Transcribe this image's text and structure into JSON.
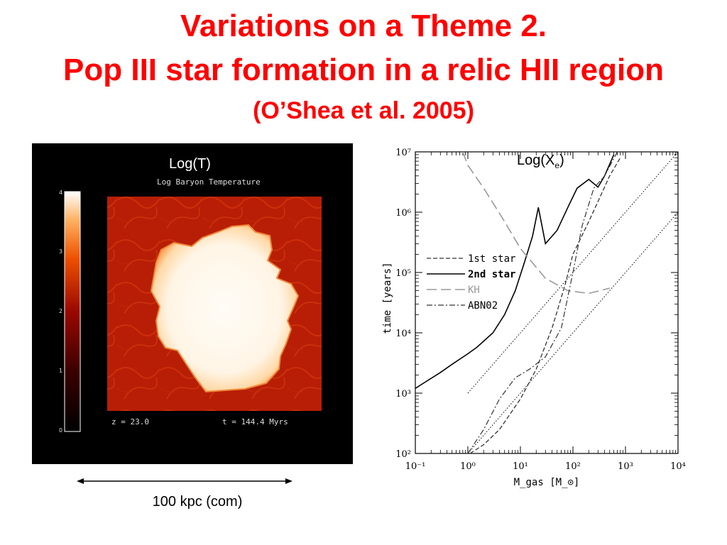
{
  "title": {
    "line1": "Variations on a Theme 2.",
    "line2": "Pop III star formation in a relic HII region",
    "line3": "(O’Shea et al. 2005)"
  },
  "simulation": {
    "label": "Log(T)",
    "subtitle": "Log Baryon Temperature",
    "redshift": "z = 23.0",
    "time": "t = 144.4 Myrs",
    "colorbar_ticks": [
      "4",
      "3",
      "2",
      "1",
      "0"
    ]
  },
  "scale_bar": {
    "label": "100 kpc (com)"
  },
  "chart_annotation": {
    "prefix": "Log(X",
    "subscript": "e",
    "suffix": ")"
  },
  "chart_data": {
    "type": "line",
    "xscale": "log",
    "yscale": "log",
    "xlim": [
      0.1,
      10000
    ],
    "ylim": [
      100,
      10000000
    ],
    "xlabel": "M_gas [M_⊙]",
    "ylabel": "time [years]",
    "x_ticks": [
      "10⁻¹",
      "10⁰",
      "10¹",
      "10²",
      "10³",
      "10⁴"
    ],
    "y_ticks": [
      "10²",
      "10³",
      "10⁴",
      "10⁵",
      "10⁶",
      "10⁷"
    ],
    "legend_position": "middle-left",
    "series": [
      {
        "name": "1st star",
        "style": "dashed",
        "color": "#333333",
        "points": [
          [
            1.1,
            100
          ],
          [
            2,
            140
          ],
          [
            4,
            250
          ],
          [
            10,
            800
          ],
          [
            20,
            2500
          ],
          [
            40,
            12000
          ],
          [
            70,
            60000
          ],
          [
            100,
            200000
          ],
          [
            200,
            700000
          ],
          [
            300,
            1500000
          ],
          [
            500,
            4000000
          ],
          [
            800,
            8000000
          ]
        ]
      },
      {
        "name": "2nd star",
        "style": "solid",
        "color": "#000000",
        "points": [
          [
            0.1,
            1200
          ],
          [
            0.15,
            1500
          ],
          [
            0.3,
            2200
          ],
          [
            0.5,
            3000
          ],
          [
            1,
            4500
          ],
          [
            1.5,
            5800
          ],
          [
            3,
            10000
          ],
          [
            5,
            20000
          ],
          [
            8,
            50000
          ],
          [
            12,
            150000
          ],
          [
            17,
            400000
          ],
          [
            22,
            1200000
          ],
          [
            30,
            300000
          ],
          [
            50,
            500000
          ],
          [
            80,
            1200000
          ],
          [
            120,
            2500000
          ],
          [
            200,
            3500000
          ],
          [
            300,
            2600000
          ],
          [
            400,
            4000000
          ],
          [
            600,
            9000000
          ]
        ]
      },
      {
        "name": "KH",
        "style": "long-dashed",
        "color": "#999999",
        "points": [
          [
            0.8,
            10000000
          ],
          [
            1,
            6000000
          ],
          [
            2,
            2500000
          ],
          [
            5,
            700000
          ],
          [
            10,
            250000
          ],
          [
            30,
            80000
          ],
          [
            80,
            50000
          ],
          [
            200,
            45000
          ],
          [
            500,
            55000
          ]
        ]
      },
      {
        "name": "ABN02",
        "style": "dash-dot",
        "color": "#333333",
        "points": [
          [
            1,
            100
          ],
          [
            2,
            250
          ],
          [
            4,
            800
          ],
          [
            8,
            1800
          ],
          [
            15,
            2500
          ],
          [
            30,
            4000
          ],
          [
            60,
            12000
          ],
          [
            100,
            100000
          ],
          [
            150,
            600000
          ],
          [
            250,
            2500000
          ],
          [
            400,
            4000000
          ],
          [
            700,
            10000000
          ]
        ]
      }
    ],
    "reference_lines": [
      {
        "style": "dotted",
        "points": [
          [
            1,
            1000
          ],
          [
            10000,
            10000000
          ]
        ]
      },
      {
        "style": "dotted",
        "points": [
          [
            1,
            100
          ],
          [
            10000,
            1000000
          ]
        ]
      }
    ]
  }
}
